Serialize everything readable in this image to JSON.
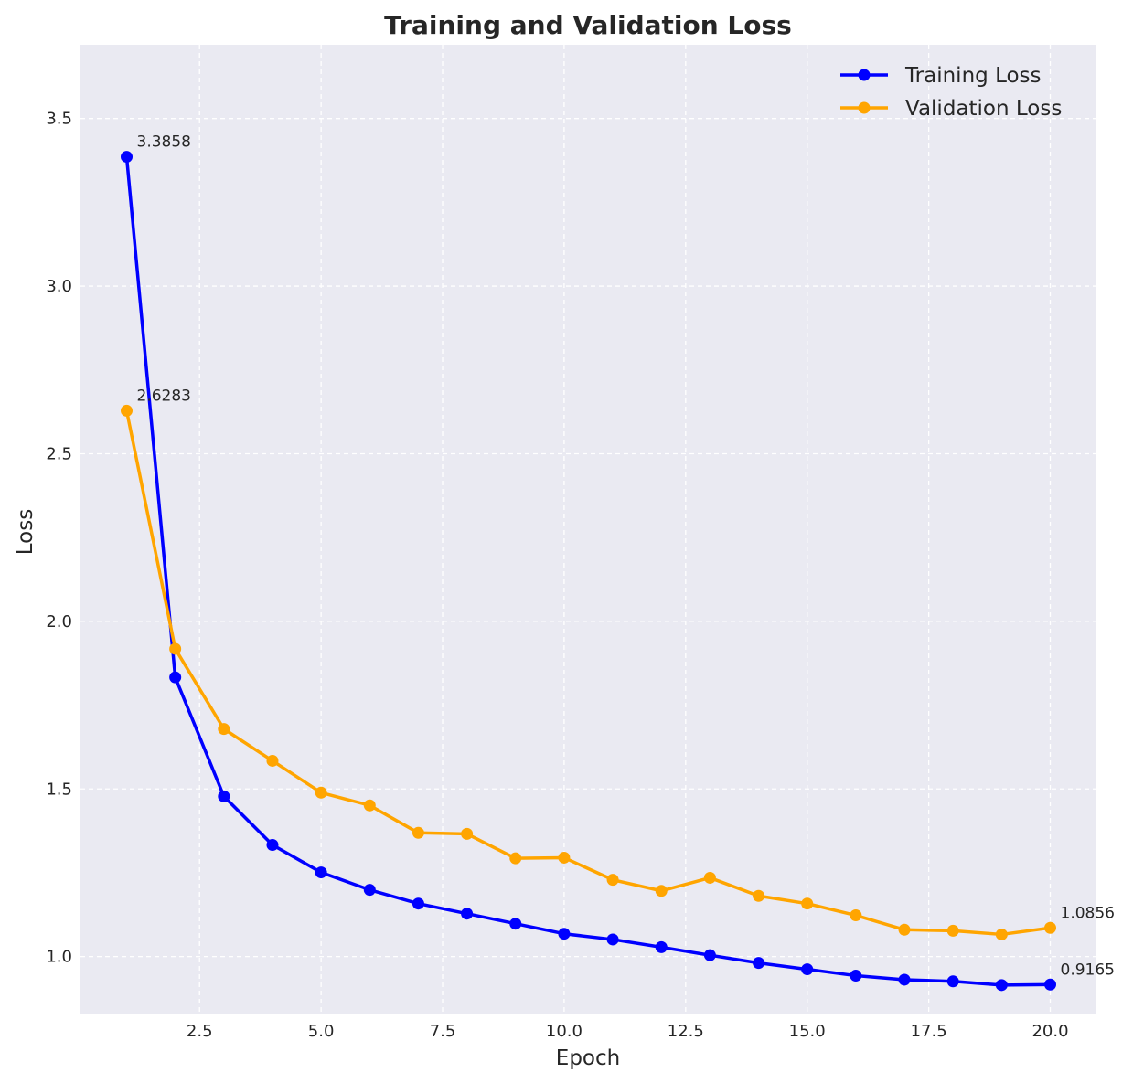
{
  "chart_data": {
    "type": "line",
    "title": "Training and Validation Loss",
    "xlabel": "Epoch",
    "ylabel": "Loss",
    "xlim": [
      0.05,
      20.95
    ],
    "ylim": [
      0.83,
      3.72
    ],
    "xticks": [
      2.5,
      5.0,
      7.5,
      10.0,
      12.5,
      15.0,
      17.5,
      20.0
    ],
    "xtick_labels": [
      "2.5",
      "5.0",
      "7.5",
      "10.0",
      "12.5",
      "15.0",
      "17.5",
      "20.0"
    ],
    "yticks": [
      1.0,
      1.5,
      2.0,
      2.5,
      3.0,
      3.5
    ],
    "ytick_labels": [
      "1.0",
      "1.5",
      "2.0",
      "2.5",
      "3.0",
      "3.5"
    ],
    "grid": true,
    "legend_position": "top-right",
    "x": [
      1,
      2,
      3,
      4,
      5,
      6,
      7,
      8,
      9,
      10,
      11,
      12,
      13,
      14,
      15,
      16,
      17,
      18,
      19,
      20
    ],
    "series": [
      {
        "name": "Training Loss",
        "color": "#0000ff",
        "values": [
          3.3858,
          1.833,
          1.478,
          1.333,
          1.251,
          1.199,
          1.158,
          1.128,
          1.098,
          1.068,
          1.051,
          1.028,
          1.004,
          0.981,
          0.962,
          0.943,
          0.931,
          0.926,
          0.915,
          0.9165
        ]
      },
      {
        "name": "Validation Loss",
        "color": "#ffa500",
        "values": [
          2.6283,
          1.918,
          1.679,
          1.584,
          1.489,
          1.451,
          1.369,
          1.366,
          1.293,
          1.295,
          1.229,
          1.196,
          1.235,
          1.181,
          1.158,
          1.123,
          1.08,
          1.077,
          1.066,
          1.0856
        ]
      }
    ],
    "annotations": [
      {
        "text": "3.3858",
        "x": 1,
        "y": 3.3858
      },
      {
        "text": "2.6283",
        "x": 1,
        "y": 2.6283
      },
      {
        "text": "1.0856",
        "x": 20,
        "y": 1.0856
      },
      {
        "text": "0.9165",
        "x": 20,
        "y": 0.9165
      }
    ]
  },
  "colors": {
    "plot_background": "#eaeaf2",
    "grid": "#ffffff",
    "text": "#262626"
  }
}
